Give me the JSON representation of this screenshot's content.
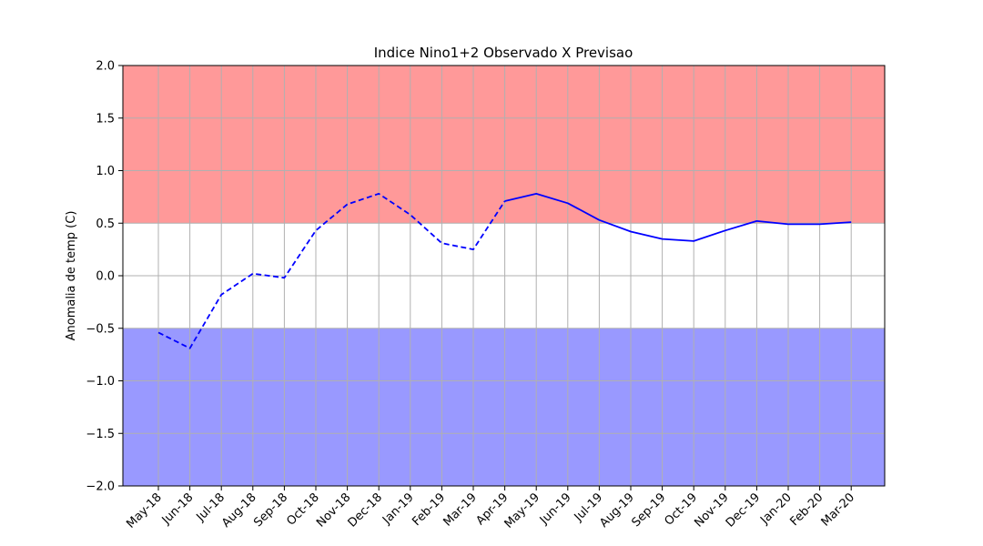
{
  "chart_data": {
    "type": "line",
    "title": "Indice Nino1+2 Observado X Previsao",
    "xlabel": "",
    "ylabel": "Anomalia de temp (C)",
    "ylim": [
      -2.0,
      2.0
    ],
    "yticks": [
      -2.0,
      -1.5,
      -1.0,
      -0.5,
      0.0,
      0.5,
      1.0,
      1.5,
      2.0
    ],
    "ytick_labels": [
      "−2.0",
      "−1.5",
      "−1.0",
      "−0.5",
      "0.0",
      "0.5",
      "1.0",
      "1.5",
      "2.0"
    ],
    "categories": [
      "May-18",
      "Jun-18",
      "Jul-18",
      "Aug-18",
      "Sep-18",
      "Oct-18",
      "Nov-18",
      "Dec-18",
      "Jan-19",
      "Feb-19",
      "Mar-19",
      "Apr-19",
      "May-19",
      "Jun-19",
      "Jul-19",
      "Aug-19",
      "Sep-19",
      "Oct-19",
      "Nov-19",
      "Dec-19",
      "Jan-20",
      "Feb-20",
      "Mar-20"
    ],
    "grid": true,
    "bands": [
      {
        "from": 0.5,
        "to": 2.0,
        "color": "#ff9999"
      },
      {
        "from": -2.0,
        "to": -0.5,
        "color": "#9999ff"
      }
    ],
    "series": [
      {
        "style": "dashed",
        "color": "#0000ff",
        "values": [
          -0.54,
          -0.69,
          -0.18,
          0.02,
          -0.02,
          0.43,
          0.68,
          0.78,
          0.58,
          0.31,
          0.25,
          0.71,
          null,
          null,
          null,
          null,
          null,
          null,
          null,
          null,
          null,
          null,
          null
        ]
      },
      {
        "style": "solid",
        "color": "#0000ff",
        "values": [
          null,
          null,
          null,
          null,
          null,
          null,
          null,
          null,
          null,
          null,
          null,
          0.71,
          0.78,
          0.69,
          0.53,
          0.42,
          0.35,
          0.33,
          0.43,
          0.52,
          0.49,
          0.49,
          0.51
        ]
      }
    ]
  }
}
